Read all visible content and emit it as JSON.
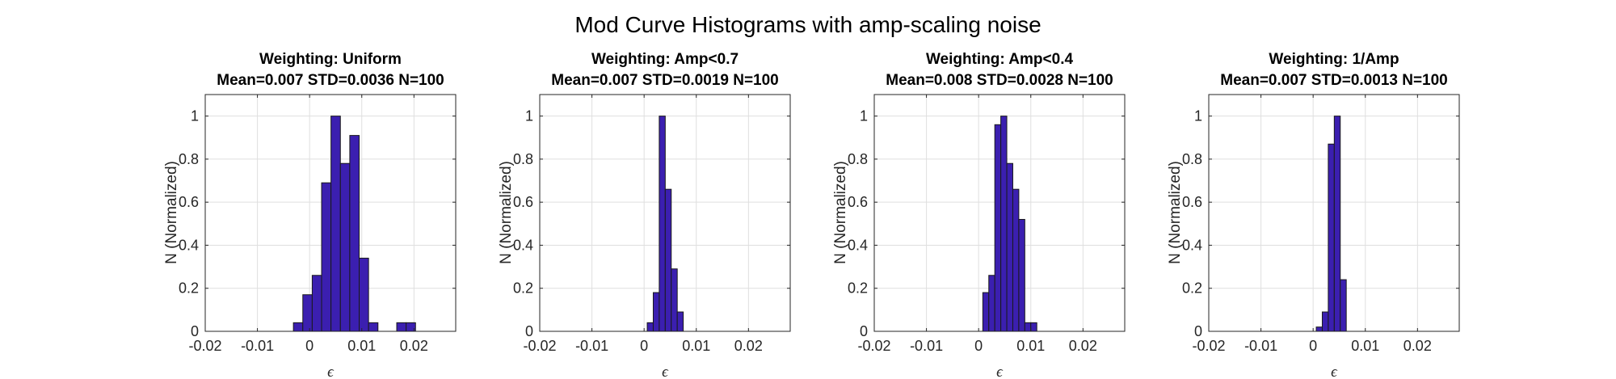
{
  "figure": {
    "title": "Mod Curve Histograms with amp-scaling noise"
  },
  "chart_data": [
    {
      "type": "bar",
      "title": "Weighting: Uniform",
      "subtitle": "Mean=0.007 STD=0.0036 N=100",
      "xlabel": "ϵ",
      "ylabel": "N (Normalized)",
      "xlim": [
        -0.02,
        0.028
      ],
      "ylim": [
        0,
        1.1
      ],
      "xticks": [
        -0.02,
        -0.01,
        0,
        0.01,
        0.02
      ],
      "xtick_labels": [
        "-0.02",
        "-0.01",
        "0",
        "0.01",
        "0.02"
      ],
      "yticks": [
        0,
        0.2,
        0.4,
        0.6,
        0.8,
        1
      ],
      "ytick_labels": [
        "0",
        "0.2",
        "0.4",
        "0.6",
        "0.8",
        "1"
      ],
      "grid": true,
      "bin_width": 0.0018,
      "bin_left_edges": [
        -0.0031,
        -0.0013,
        0.0005,
        0.0023,
        0.0041,
        0.0059,
        0.0077,
        0.0095,
        0.0113,
        0.0131,
        0.0149,
        0.0167,
        0.0185
      ],
      "values": [
        0.04,
        0.17,
        0.26,
        0.69,
        1.0,
        0.78,
        0.91,
        0.34,
        0.04,
        0,
        0,
        0.04,
        0.04
      ],
      "color": "#3b1fb0"
    },
    {
      "type": "bar",
      "title": "Weighting: Amp<0.7",
      "subtitle": "Mean=0.007 STD=0.0019 N=100",
      "xlabel": "ϵ",
      "ylabel": "N (Normalized)",
      "xlim": [
        -0.02,
        0.028
      ],
      "ylim": [
        0,
        1.1
      ],
      "xticks": [
        -0.02,
        -0.01,
        0,
        0.01,
        0.02
      ],
      "xtick_labels": [
        "-0.02",
        "-0.01",
        "0",
        "0.01",
        "0.02"
      ],
      "yticks": [
        0,
        0.2,
        0.4,
        0.6,
        0.8,
        1
      ],
      "ytick_labels": [
        "0",
        "0.2",
        "0.4",
        "0.6",
        "0.8",
        "1"
      ],
      "grid": true,
      "bin_width": 0.00115,
      "bin_left_edges": [
        0.0006,
        0.00175,
        0.0029,
        0.00405,
        0.0052,
        0.00635,
        0.0075,
        0.00865,
        0.0098
      ],
      "values": [
        0.04,
        0.18,
        1.0,
        0.66,
        0.29,
        0.09,
        0,
        0,
        0
      ],
      "color": "#3b1fb0"
    },
    {
      "type": "bar",
      "title": "Weighting: Amp<0.4",
      "subtitle": "Mean=0.008 STD=0.0028 N=100",
      "xlabel": "ϵ",
      "ylabel": "N (Normalized)",
      "xlim": [
        -0.02,
        0.028
      ],
      "ylim": [
        0,
        1.1
      ],
      "xticks": [
        -0.02,
        -0.01,
        0,
        0.01,
        0.02
      ],
      "xtick_labels": [
        "-0.02",
        "-0.01",
        "0",
        "0.01",
        "0.02"
      ],
      "yticks": [
        0,
        0.2,
        0.4,
        0.6,
        0.8,
        1
      ],
      "ytick_labels": [
        "0",
        "0.2",
        "0.4",
        "0.6",
        "0.8",
        "1"
      ],
      "grid": true,
      "bin_width": 0.00115,
      "bin_left_edges": [
        0.0008,
        0.00195,
        0.0031,
        0.00425,
        0.0054,
        0.00655,
        0.0077,
        0.00885,
        0.01,
        0.01115,
        0.0123,
        0.01345,
        0.0146,
        0.01575
      ],
      "values": [
        0.18,
        0.26,
        0.96,
        1.0,
        0.78,
        0.66,
        0.52,
        0.04,
        0.04,
        0,
        0,
        0,
        0,
        0
      ],
      "color": "#3b1fb0"
    },
    {
      "type": "bar",
      "title": "Weighting: 1/Amp",
      "subtitle": "Mean=0.007 STD=0.0013 N=100",
      "xlabel": "ϵ",
      "ylabel": "N (Normalized)",
      "xlim": [
        -0.02,
        0.028
      ],
      "ylim": [
        0,
        1.1
      ],
      "xticks": [
        -0.02,
        -0.01,
        0,
        0.01,
        0.02
      ],
      "xtick_labels": [
        "-0.02",
        "-0.01",
        "0",
        "0.01",
        "0.02"
      ],
      "yticks": [
        0,
        0.2,
        0.4,
        0.6,
        0.8,
        1
      ],
      "ytick_labels": [
        "0",
        "0.2",
        "0.4",
        "0.6",
        "0.8",
        "1"
      ],
      "grid": true,
      "bin_width": 0.00115,
      "bin_left_edges": [
        0.0006,
        0.00175,
        0.0029,
        0.00405,
        0.0052,
        0.00635,
        0.0075,
        0.00865
      ],
      "values": [
        0.02,
        0.09,
        0.87,
        1.0,
        0.24,
        0,
        0,
        0
      ],
      "color": "#3b1fb0"
    }
  ]
}
